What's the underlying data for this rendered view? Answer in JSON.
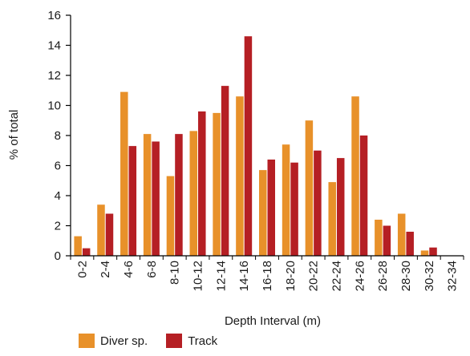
{
  "chart_data": {
    "type": "bar",
    "title": "",
    "xlabel": "Depth Interval (m)",
    "ylabel": "% of total",
    "ylim": [
      0,
      16
    ],
    "yticks": [
      "0",
      "2",
      "4",
      "6",
      "8",
      "10",
      "12",
      "14",
      "16"
    ],
    "grid": false,
    "legend_position": "bottom-left",
    "categories": [
      "0-2",
      "2-4",
      "4-6",
      "6-8",
      "8-10",
      "10-12",
      "12-14",
      "14-16",
      "16-18",
      "18-20",
      "20-22",
      "22-24",
      "24-26",
      "26-28",
      "28-30",
      "30-32",
      "32-34"
    ],
    "series": [
      {
        "name": "Diver sp.",
        "color": "#E8912A",
        "values": [
          1.3,
          3.4,
          10.9,
          8.1,
          5.3,
          8.3,
          9.5,
          10.6,
          5.7,
          7.4,
          9.0,
          4.9,
          10.6,
          2.4,
          2.8,
          0.35,
          0
        ]
      },
      {
        "name": "Track",
        "color": "#B51F24",
        "values": [
          0.5,
          2.8,
          7.3,
          7.6,
          8.1,
          9.6,
          11.3,
          14.6,
          6.4,
          6.2,
          7.0,
          6.5,
          8.0,
          2.0,
          1.6,
          0.55,
          0
        ]
      }
    ]
  }
}
